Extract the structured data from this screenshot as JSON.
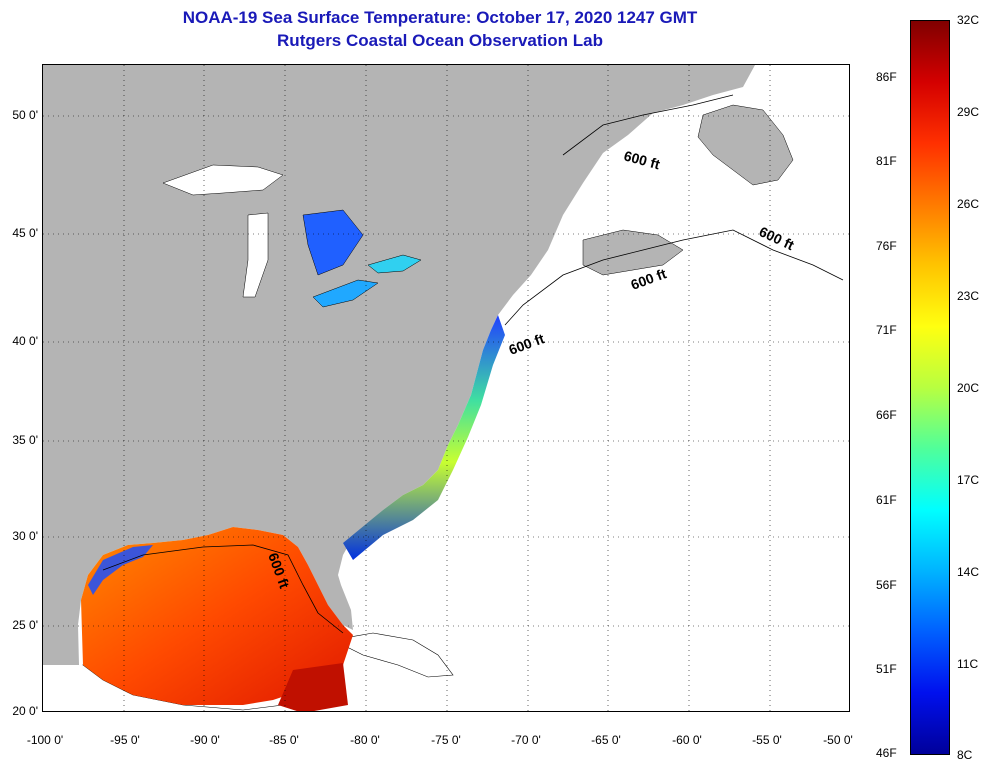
{
  "header": {
    "title_line1": "NOAA-19 Sea Surface Temperature:  October 17, 2020 1247 GMT",
    "title_line2": "Rutgers Coastal Ocean Observation Lab"
  },
  "axes": {
    "y_labels": [
      "50 0'",
      "45 0'",
      "40 0'",
      "35 0'",
      "30 0'",
      "25 0'",
      "20 0'"
    ],
    "x_labels": [
      "-100 0'",
      "-95 0'",
      "-90 0'",
      "-85 0'",
      "-80 0'",
      "-75 0'",
      "-70 0'",
      "-65 0'",
      "-60 0'",
      "-55 0'",
      "-50 0'"
    ]
  },
  "contour_labels": [
    "600 ft",
    "600 ft",
    "600 ft",
    "600 ft",
    "600 ft"
  ],
  "colorbar": {
    "fahrenheit_labels": [
      "86F",
      "81F",
      "76F",
      "71F",
      "66F",
      "61F",
      "56F",
      "51F",
      "46F"
    ],
    "celsius_labels": [
      "32C",
      "29C",
      "26C",
      "23C",
      "20C",
      "17C",
      "14C",
      "11C",
      "8C"
    ],
    "colors": [
      "#800000",
      "#d40000",
      "#ff3000",
      "#ff7a00",
      "#ffc400",
      "#ffff10",
      "#b8ff40",
      "#50ff9a",
      "#00ffff",
      "#00b4ff",
      "#0060ff",
      "#0010ee",
      "#00009a"
    ]
  },
  "map_colors": {
    "land": "#b4b4b4",
    "ocean_no_data": "#ffffff"
  }
}
